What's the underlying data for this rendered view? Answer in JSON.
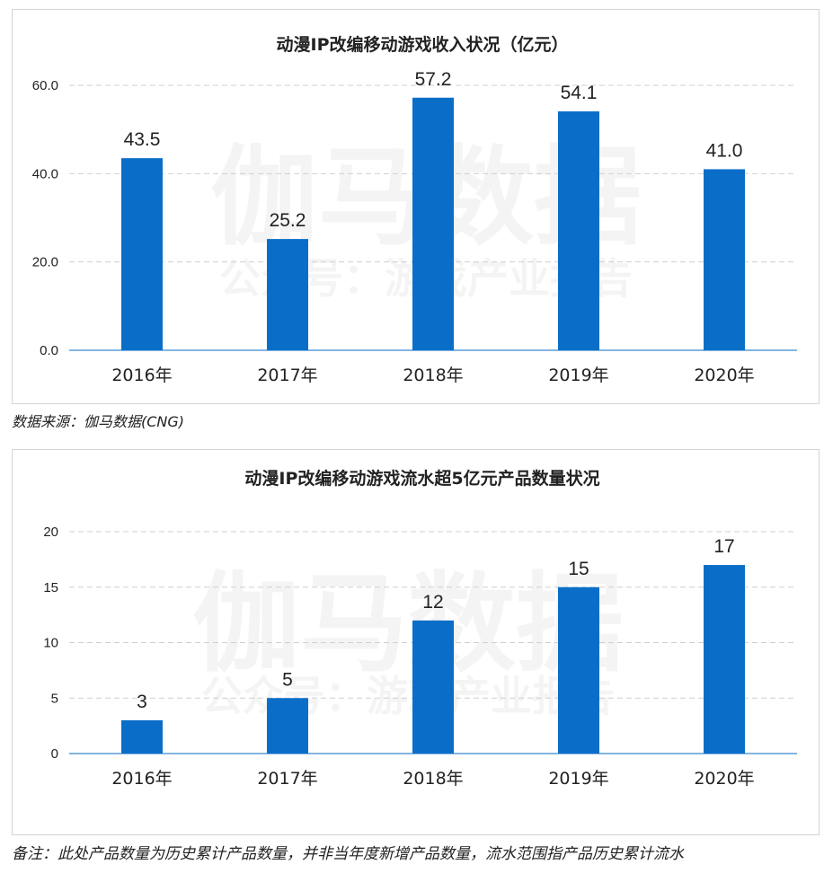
{
  "watermark": {
    "main": "伽马数据",
    "sub": "公众号：游戏产业报告"
  },
  "source_note": "数据来源：伽马数据(CNG)",
  "footer_note": "备注：此处产品数量为历史累计产品数量，并非当年度新增产品数量，流水范围指产品历史累计流水",
  "colors": {
    "bar": "#0a6ec8",
    "grid": "#cfcfcf",
    "axis": "#5b9bd5"
  },
  "chart_data": [
    {
      "type": "bar",
      "title": "动漫IP改编移动游戏收入状况（亿元）",
      "categories": [
        "2016年",
        "2017年",
        "2018年",
        "2019年",
        "2020年"
      ],
      "values": [
        43.5,
        25.2,
        57.2,
        54.1,
        41.0
      ],
      "value_labels": [
        "43.5",
        "25.2",
        "57.2",
        "54.1",
        "41.0"
      ],
      "yticks": [
        "0.0",
        "20.0",
        "40.0",
        "60.0"
      ],
      "ylim": [
        0,
        60
      ],
      "grid": true
    },
    {
      "type": "bar",
      "title": "动漫IP改编移动游戏流水超5亿元产品数量状况",
      "categories": [
        "2016年",
        "2017年",
        "2018年",
        "2019年",
        "2020年"
      ],
      "values": [
        3,
        5,
        12,
        15,
        17
      ],
      "value_labels": [
        "3",
        "5",
        "12",
        "15",
        "17"
      ],
      "yticks": [
        "0",
        "5",
        "10",
        "15",
        "20"
      ],
      "ylim": [
        0,
        20
      ],
      "grid": true
    }
  ]
}
